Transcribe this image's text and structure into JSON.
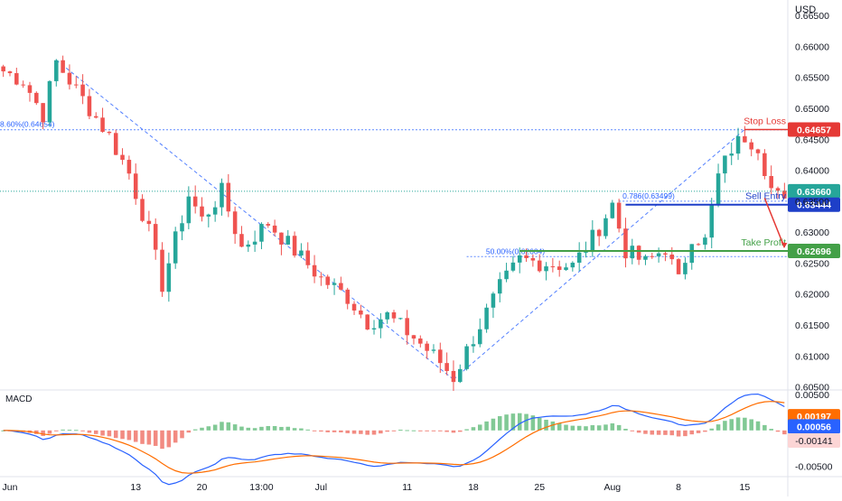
{
  "currency_label": "USD",
  "macd_label": "MACD",
  "colors": {
    "up": "#26a69a",
    "down": "#ef5350",
    "blue_line": "#1e3fc8",
    "green_line": "#43a047",
    "red_line": "#e53935",
    "fib_blue": "#2962ff",
    "macd_line": "#2962ff",
    "signal_line": "#ff6d00"
  },
  "chart_data": [
    {
      "type": "candlestick",
      "title": "",
      "ylabel": "USD",
      "ylim": [
        0.6045,
        0.6675
      ],
      "price_ticks": [
        "0.66500",
        "0.66000",
        "0.65500",
        "0.65000",
        "0.64500",
        "0.64000",
        "0.63500",
        "0.63000",
        "0.62500",
        "0.62000",
        "0.61500",
        "0.61000",
        "0.60500"
      ],
      "x_ticks": [
        {
          "label": "Jun",
          "i": 1
        },
        {
          "label": "13",
          "i": 20
        },
        {
          "label": "20",
          "i": 30
        },
        {
          "label": "13:00",
          "i": 39
        },
        {
          "label": "Jul",
          "i": 48
        },
        {
          "label": "11",
          "i": 61
        },
        {
          "label": "18",
          "i": 71
        },
        {
          "label": "25",
          "i": 81
        },
        {
          "label": "Aug",
          "i": 92
        },
        {
          "label": "8",
          "i": 102
        },
        {
          "label": "15",
          "i": 112
        }
      ],
      "close_path": [
        [
          0,
          0.656
        ],
        [
          3,
          0.6545
        ],
        [
          6,
          0.649
        ],
        [
          8,
          0.6575
        ],
        [
          12,
          0.6515
        ],
        [
          16,
          0.6455
        ],
        [
          19,
          0.6395
        ],
        [
          22,
          0.63
        ],
        [
          24,
          0.6215
        ],
        [
          28,
          0.636
        ],
        [
          30,
          0.632
        ],
        [
          33,
          0.6365
        ],
        [
          36,
          0.6275
        ],
        [
          40,
          0.6315
        ],
        [
          44,
          0.627
        ],
        [
          48,
          0.6225
        ],
        [
          52,
          0.6195
        ],
        [
          55,
          0.6155
        ],
        [
          58,
          0.6165
        ],
        [
          62,
          0.613
        ],
        [
          66,
          0.609
        ],
        [
          68,
          0.6065
        ],
        [
          71,
          0.613
        ],
        [
          75,
          0.621
        ],
        [
          78,
          0.6255
        ],
        [
          82,
          0.625
        ],
        [
          86,
          0.6245
        ],
        [
          89,
          0.629
        ],
        [
          92,
          0.6345
        ],
        [
          94,
          0.627
        ],
        [
          97,
          0.625
        ],
        [
          100,
          0.6275
        ],
        [
          102,
          0.622
        ],
        [
          104,
          0.6295
        ],
        [
          106,
          0.6285
        ],
        [
          108,
          0.639
        ],
        [
          110,
          0.6435
        ],
        [
          112,
          0.6455
        ],
        [
          114,
          0.644
        ],
        [
          116,
          0.637
        ],
        [
          118,
          0.6344
        ]
      ],
      "candle_count": 119,
      "levels": [
        {
          "name": "Stop Loss",
          "value": 0.64657,
          "label": "0.64657",
          "kind": "stop"
        },
        {
          "name": "",
          "value": 0.6366,
          "label": "0.63660",
          "kind": "current"
        },
        {
          "name": "Sell Entry",
          "value": 0.63444,
          "label": "0.63444",
          "kind": "entry"
        },
        {
          "name": "Take Profit",
          "value": 0.62696,
          "label": "0.62696",
          "kind": "target"
        }
      ],
      "fib_labels": [
        {
          "text": "8.60%(0.64654)",
          "value": 0.64654
        },
        {
          "text": "0.786(0.63499)",
          "value": 0.63499
        },
        {
          "text": "50.00%(0.62604)",
          "value": 0.62604
        }
      ],
      "swing_points": [
        {
          "i": 8,
          "value": 0.6578
        },
        {
          "i": 68,
          "value": 0.6062
        },
        {
          "i": 112,
          "value": 0.6466
        }
      ]
    },
    {
      "type": "macd",
      "title": "MACD",
      "ylim": [
        -0.0063,
        0.0055
      ],
      "ticks": [
        "0.00500",
        "-0.00500"
      ],
      "values": [
        {
          "label": "0.00197",
          "value": 0.00197,
          "kind": "signal"
        },
        {
          "label": "0.00056",
          "value": 0.00056,
          "kind": "macd"
        },
        {
          "label": "-0.00141",
          "value": -0.00141,
          "kind": "hist"
        }
      ]
    }
  ]
}
